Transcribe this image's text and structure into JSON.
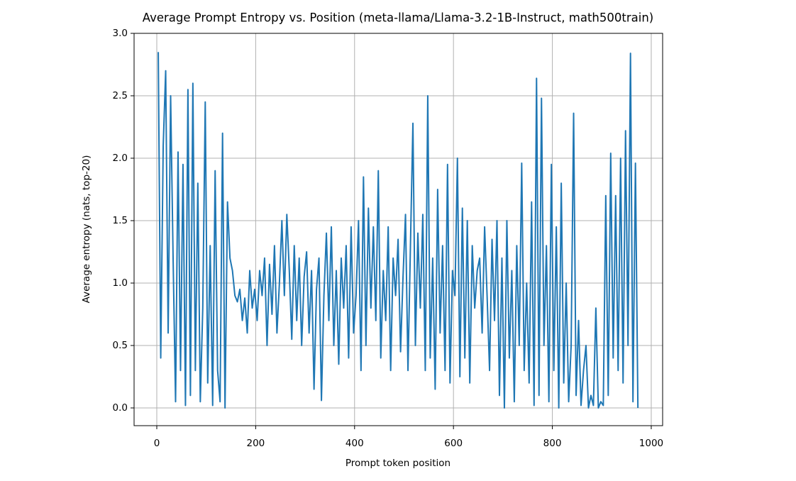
{
  "chart_data": {
    "type": "line",
    "title": "Average Prompt Entropy vs. Position (meta-llama/Llama-3.2-1B-Instruct, math500train)",
    "x_label": "Prompt token position",
    "y_label": "Average entropy (nats, top-20)",
    "color": "#1f77b4",
    "grid": true,
    "xlim": [
      -45.9,
      1023
    ],
    "ylim": [
      -0.142,
      3.0
    ],
    "xticks": [
      0,
      200,
      400,
      600,
      800,
      1000
    ],
    "yticks": [
      {
        "value": 0,
        "label": "0.0"
      },
      0.5,
      {
        "value": 1,
        "label": "1.0"
      },
      1.5,
      {
        "value": 2,
        "label": "2.0"
      },
      2.5,
      {
        "value": 3,
        "label": "3.0"
      }
    ],
    "x": [
      3,
      8,
      13,
      18,
      23,
      28,
      33,
      38,
      43,
      48,
      53,
      58,
      63,
      68,
      73,
      78,
      83,
      88,
      93,
      98,
      103,
      108,
      113,
      118,
      123,
      128,
      133,
      138,
      143,
      148,
      153,
      158,
      163,
      168,
      173,
      178,
      183,
      188,
      193,
      198,
      203,
      208,
      213,
      218,
      223,
      228,
      233,
      238,
      243,
      248,
      253,
      258,
      263,
      268,
      273,
      278,
      283,
      288,
      293,
      298,
      303,
      308,
      313,
      318,
      323,
      328,
      333,
      338,
      343,
      348,
      353,
      358,
      363,
      368,
      373,
      378,
      383,
      388,
      393,
      398,
      403,
      408,
      413,
      418,
      423,
      428,
      433,
      438,
      443,
      448,
      453,
      458,
      463,
      468,
      473,
      478,
      483,
      488,
      493,
      498,
      503,
      508,
      513,
      518,
      523,
      528,
      533,
      538,
      543,
      548,
      553,
      558,
      563,
      568,
      573,
      578,
      583,
      588,
      593,
      598,
      603,
      608,
      613,
      618,
      623,
      628,
      633,
      638,
      643,
      648,
      653,
      658,
      663,
      668,
      673,
      678,
      683,
      688,
      693,
      698,
      703,
      708,
      713,
      718,
      723,
      728,
      733,
      738,
      743,
      748,
      753,
      758,
      763,
      768,
      773,
      778,
      783,
      788,
      793,
      798,
      803,
      808,
      813,
      818,
      823,
      828,
      833,
      838,
      843,
      848,
      853,
      858,
      863,
      868,
      873,
      878,
      883,
      888,
      893,
      898,
      903,
      908,
      913,
      918,
      923,
      928,
      933,
      938,
      943,
      948,
      953,
      958,
      963,
      968,
      973
    ],
    "values": [
      2.85,
      0.4,
      2.1,
      2.7,
      0.6,
      2.5,
      1.2,
      0.05,
      2.05,
      0.3,
      1.95,
      0.02,
      2.55,
      0.1,
      2.6,
      0.3,
      1.8,
      0.05,
      0.8,
      2.45,
      0.2,
      1.3,
      0.02,
      1.9,
      0.3,
      0.05,
      2.2,
      0.0,
      1.65,
      1.2,
      1.1,
      0.9,
      0.85,
      0.95,
      0.7,
      0.88,
      0.6,
      1.1,
      0.8,
      0.95,
      0.7,
      1.1,
      0.9,
      1.2,
      0.5,
      1.15,
      0.75,
      1.3,
      0.6,
      1.0,
      1.5,
      0.9,
      1.55,
      1.1,
      0.55,
      1.3,
      0.7,
      1.2,
      0.5,
      1.05,
      1.25,
      0.6,
      1.1,
      0.15,
      0.95,
      1.2,
      0.06,
      0.9,
      1.4,
      0.7,
      1.45,
      0.5,
      1.1,
      0.35,
      1.2,
      0.8,
      1.3,
      0.4,
      1.45,
      0.6,
      0.9,
      1.5,
      0.3,
      1.85,
      0.5,
      1.6,
      0.8,
      1.45,
      0.7,
      1.9,
      0.4,
      1.1,
      0.7,
      1.45,
      0.3,
      1.2,
      0.9,
      1.35,
      0.45,
      1.05,
      1.55,
      0.3,
      1.3,
      2.28,
      0.5,
      1.4,
      0.8,
      1.55,
      0.3,
      2.5,
      0.4,
      1.2,
      0.15,
      1.75,
      0.6,
      1.3,
      0.3,
      1.95,
      0.2,
      1.1,
      0.9,
      2.0,
      0.25,
      1.6,
      0.4,
      1.5,
      0.2,
      1.3,
      0.8,
      1.1,
      1.2,
      0.6,
      1.45,
      0.9,
      0.3,
      1.35,
      0.7,
      1.5,
      0.1,
      1.2,
      0.0,
      1.5,
      0.4,
      1.1,
      0.05,
      1.3,
      0.5,
      1.96,
      0.3,
      1.0,
      0.2,
      1.65,
      0.02,
      2.64,
      0.1,
      2.48,
      0.5,
      1.3,
      0.05,
      1.95,
      0.3,
      1.45,
      0.0,
      1.8,
      0.2,
      1.0,
      0.05,
      0.5,
      2.36,
      0.1,
      0.7,
      0.02,
      0.3,
      0.5,
      0.0,
      0.1,
      0.02,
      0.8,
      0.0,
      0.05,
      0.02,
      1.7,
      0.1,
      2.04,
      0.4,
      1.7,
      0.3,
      2.0,
      0.2,
      2.22,
      0.5,
      2.84,
      0.05,
      1.96,
      0.0
    ]
  }
}
